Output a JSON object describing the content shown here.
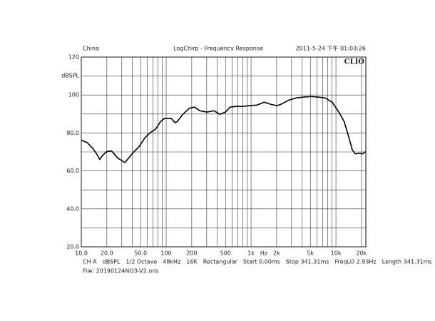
{
  "chart_data": {
    "type": "line",
    "xscale": "log",
    "header_left": "China",
    "title": "LogChirp - Frequency Response",
    "header_right": "2011-5-24 下午 01:03:26",
    "brand": "CLIO",
    "y_label": "dBSPL",
    "x_label": "Hz",
    "x": [
      10,
      11.7,
      13.6,
      15.3,
      16.5,
      17.9,
      20,
      22.6,
      24.4,
      26.9,
      29.6,
      32.6,
      36,
      41,
      48,
      56,
      64,
      75,
      86,
      95,
      115,
      127,
      135,
      157,
      187,
      215,
      250,
      303,
      367,
      430,
      500,
      565,
      660,
      800,
      970,
      1180,
      1430,
      1740,
      2030,
      2340,
      2820,
      3430,
      4170,
      5060,
      6140,
      7450,
      9050,
      11000,
      12500,
      14000,
      15600,
      16900,
      19000,
      20500,
      22500
    ],
    "series": [
      {
        "color": "#000000",
        "values": [
          76.2,
          75,
          72,
          68.7,
          66,
          68.3,
          70.2,
          70.6,
          69,
          66.7,
          65.6,
          64.4,
          66.7,
          69.7,
          72.8,
          77.4,
          80,
          82,
          86,
          87.6,
          87.6,
          85.4,
          86,
          89.8,
          93,
          93.6,
          91.7,
          91,
          91.7,
          89.8,
          91,
          93.6,
          94,
          94,
          94.4,
          94.7,
          96.2,
          95,
          94.4,
          95.5,
          97.4,
          98.5,
          98.9,
          99.2,
          98.9,
          98.5,
          96.2,
          90.5,
          86,
          78.6,
          71,
          69,
          69.3,
          69,
          70.2
        ]
      }
    ],
    "xlim": [
      10,
      22500
    ],
    "ylim": [
      20,
      120
    ],
    "xticks": [
      {
        "value": 10,
        "label": "10.0"
      },
      {
        "value": 20,
        "label": "20.0"
      },
      {
        "value": 50,
        "label": "50.0"
      },
      100,
      200,
      500,
      {
        "value": 1000,
        "label": "1k"
      },
      {
        "value": 2000,
        "label": "2k"
      },
      {
        "value": 5000,
        "label": "5k"
      },
      {
        "value": 10000,
        "label": "10k"
      },
      {
        "value": 20000,
        "label": "20k"
      }
    ],
    "x_minor_grid": [
      30,
      40,
      60,
      70,
      80,
      90,
      300,
      400,
      600,
      700,
      800,
      900,
      3000,
      4000,
      6000,
      7000,
      8000,
      9000
    ],
    "yticks": [
      {
        "value": 20,
        "label": "20.0"
      },
      {
        "value": 40,
        "label": "40.0"
      },
      {
        "value": 60,
        "label": "60.0"
      },
      {
        "value": 80,
        "label": "80.0"
      },
      100,
      120
    ],
    "y_minor_grid": [
      30,
      50,
      70,
      90,
      110
    ],
    "grid": true,
    "info": [
      "CH A",
      "dBSPL",
      "1/2 Octave",
      "48kHz",
      "16K",
      "Rectangular",
      "Start 0.00ms",
      "Stop 341.31ms",
      "FreqLO 2.93Hz",
      "Length 341.31ms"
    ],
    "file": "File: 20190124NO3-V2.mls"
  }
}
